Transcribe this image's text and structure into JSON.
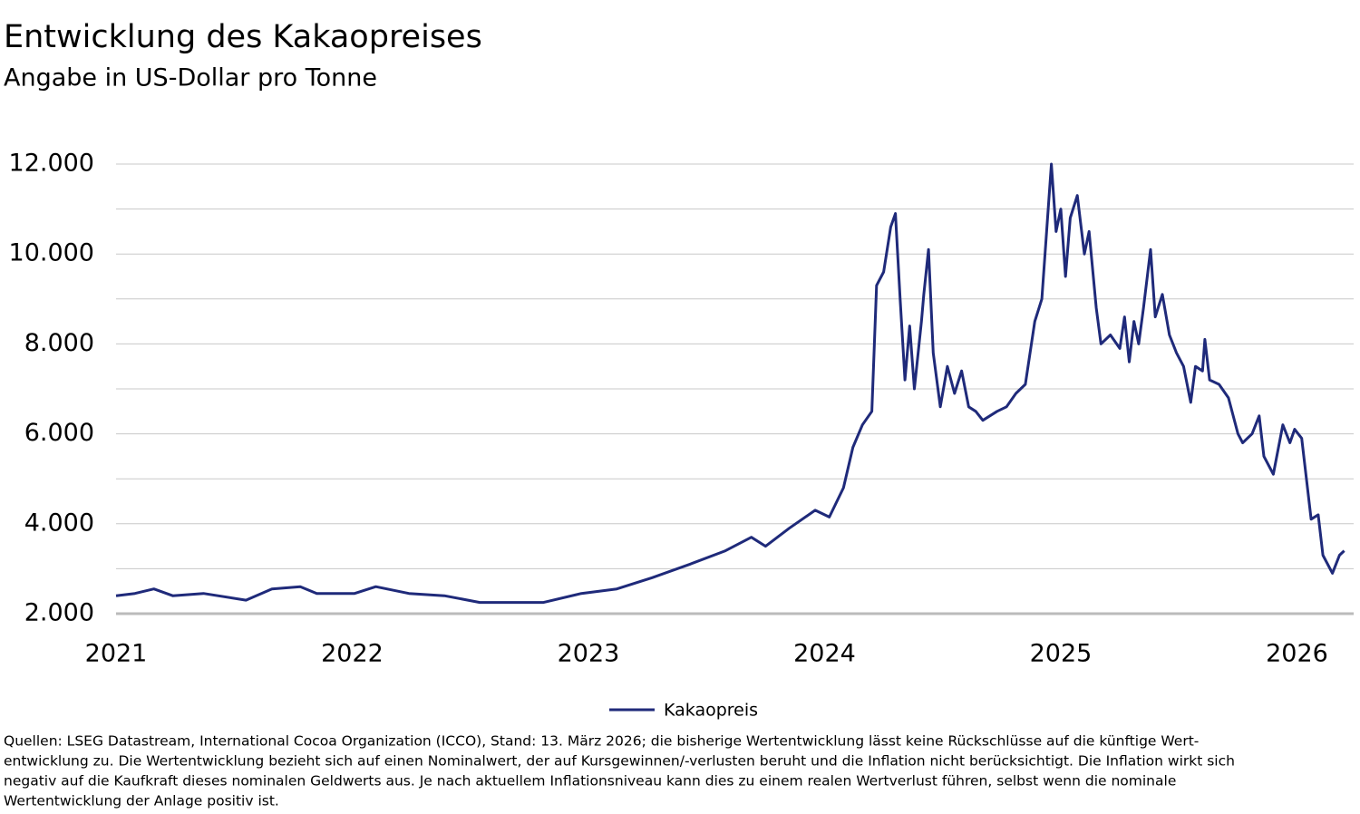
{
  "chart_data": {
    "type": "line",
    "title": "Entwicklung des Kakaopreises",
    "subtitle": "Angabe in US-Dollar pro Tonne",
    "x": [
      2021.0,
      2021.08,
      2021.16,
      2021.24,
      2021.37,
      2021.55,
      2021.66,
      2021.78,
      2021.85,
      2022.01,
      2022.1,
      2022.24,
      2022.39,
      2022.54,
      2022.74,
      2022.81,
      2022.97,
      2023.12,
      2023.27,
      2023.43,
      2023.58,
      2023.69,
      2023.75,
      2023.85,
      2023.96,
      2024.02,
      2024.08,
      2024.12,
      2024.16,
      2024.2,
      2024.22,
      2024.25,
      2024.28,
      2024.3,
      2024.32,
      2024.34,
      2024.36,
      2024.38,
      2024.41,
      2024.42,
      2024.44,
      2024.46,
      2024.49,
      2024.52,
      2024.55,
      2024.58,
      2024.61,
      2024.64,
      2024.67,
      2024.73,
      2024.77,
      2024.81,
      2024.85,
      2024.89,
      2024.92,
      2024.96,
      2024.98,
      2025.0,
      2025.02,
      2025.04,
      2025.07,
      2025.1,
      2025.12,
      2025.15,
      2025.17,
      2025.21,
      2025.25,
      2025.27,
      2025.29,
      2025.31,
      2025.33,
      2025.35,
      2025.38,
      2025.4,
      2025.43,
      2025.46,
      2025.49,
      2025.52,
      2025.55,
      2025.57,
      2025.6,
      2025.61,
      2025.63,
      2025.67,
      2025.71,
      2025.75,
      2025.77,
      2025.81,
      2025.84,
      2025.86,
      2025.9,
      2025.94,
      2025.97,
      2025.99,
      2026.02,
      2026.04,
      2026.06,
      2026.09,
      2026.11,
      2026.15,
      2026.18,
      2026.2
    ],
    "series": [
      {
        "name": "Kakaopreis",
        "color": "#1f2a7a",
        "values": [
          2400,
          2450,
          2550,
          2400,
          2450,
          2300,
          2550,
          2600,
          2450,
          2450,
          2600,
          2450,
          2400,
          2250,
          2250,
          2250,
          2450,
          2550,
          2800,
          3100,
          3400,
          3700,
          3500,
          3900,
          4300,
          4150,
          4800,
          5700,
          6200,
          6500,
          9300,
          9600,
          10600,
          10900,
          9000,
          7200,
          8400,
          7000,
          8500,
          9100,
          10100,
          7800,
          6600,
          7500,
          6900,
          7400,
          6600,
          6500,
          6300,
          6500,
          6600,
          6900,
          7100,
          8500,
          9000,
          12000,
          10500,
          11000,
          9500,
          10800,
          11300,
          10000,
          10500,
          8800,
          8000,
          8200,
          7900,
          8600,
          7600,
          8500,
          8000,
          8800,
          10100,
          8600,
          9100,
          8200,
          7800,
          7500,
          6700,
          7500,
          7400,
          8100,
          7200,
          7100,
          6800,
          6000,
          5800,
          6000,
          6400,
          5500,
          5100,
          6200,
          5800,
          6100,
          5900,
          5000,
          4100,
          4200,
          3300,
          2900,
          3300,
          3400
        ]
      }
    ],
    "xlim": [
      2021,
      2026.24
    ],
    "xticks": [
      2021,
      2022,
      2023,
      2024,
      2025,
      2026
    ],
    "ylim": [
      2000,
      12000
    ],
    "yticks": [
      {
        "value": 2000,
        "label": "2.000"
      },
      {
        "value": 4000,
        "label": "4.000"
      },
      {
        "value": 6000,
        "label": "6.000"
      },
      {
        "value": 8000,
        "label": "8.000"
      },
      {
        "value": 10000,
        "label": "10.000"
      },
      {
        "value": 12000,
        "label": "12.000"
      }
    ],
    "minor_yticks": [
      3000,
      5000,
      7000,
      9000,
      11000
    ],
    "grid": true,
    "legend": "bottom",
    "footnote": [
      "Quellen: LSEG Datastream, International Cocoa Organization (ICCO), Stand: 13. März 2026; die bisherige Wertentwicklung lässt keine Rückschlüsse auf die künftige Wert-",
      "entwicklung zu. Die Wertentwicklung bezieht sich auf einen Nominalwert, der auf Kursgewinnen/-verlusten beruht und die Inflation nicht berücksichtigt. Die Inflation wirkt sich",
      "negativ auf die Kaufkraft dieses nominalen Geldwerts aus. Je nach aktuellem Inflationsniveau kann dies zu einem realen Wertverlust führen, selbst wenn die nominale",
      "Wertentwicklung der Anlage positiv ist."
    ]
  }
}
